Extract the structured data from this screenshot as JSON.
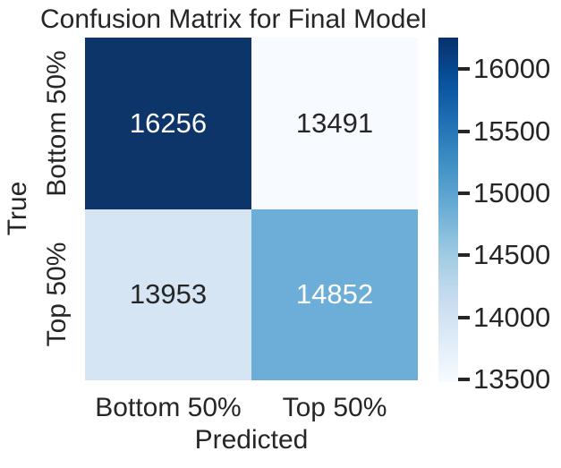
{
  "title": "Confusion Matrix for Final Model",
  "axes": {
    "x_label": "Predicted",
    "y_label": "True",
    "x_ticks": [
      "Bottom 50%",
      "Top 50%"
    ],
    "y_ticks": [
      "Bottom 50%",
      "Top 50%"
    ]
  },
  "colorbar": {
    "tick_labels": [
      "16000",
      "15500",
      "15000",
      "14500",
      "14000",
      "13500"
    ]
  },
  "colors": {
    "background": "#ffffff",
    "text": "#262626",
    "annotation_light": "#ffffff"
  },
  "chart_data": {
    "type": "heatmap",
    "title": "Confusion Matrix for Final Model",
    "xlabel": "Predicted",
    "ylabel": "True",
    "x_categories": [
      "Bottom 50%",
      "Top 50%"
    ],
    "y_categories": [
      "Bottom 50%",
      "Top 50%"
    ],
    "values": [
      [
        16256,
        13491
      ],
      [
        13953,
        14852
      ]
    ],
    "vmin": 13491,
    "vmax": 16256,
    "colormap": "Blues",
    "colorbar_ticks": [
      13500,
      14000,
      14500,
      15000,
      15500,
      16000
    ],
    "legend_position": "right",
    "grid": false,
    "cell_colors": [
      [
        "#0e3569",
        "#f7fbff"
      ],
      [
        "#d6e5f4",
        "#6caed8"
      ]
    ],
    "cell_text_colors": [
      [
        "#ffffff",
        "#262626"
      ],
      [
        "#262626",
        "#ffffff"
      ]
    ],
    "colormap_stops": [
      "#f7fbff",
      "#deebf7",
      "#c6dbef",
      "#9ecae1",
      "#6baed6",
      "#4292c6",
      "#2171b5",
      "#08519c",
      "#08306b"
    ]
  }
}
